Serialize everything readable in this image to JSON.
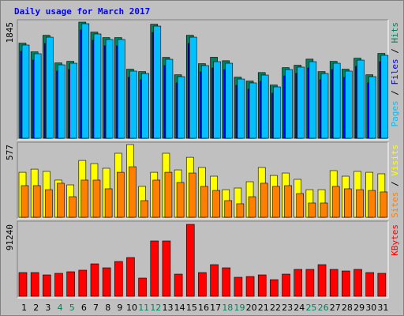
{
  "title": "Daily usage for March 2017",
  "legend_separator": " / ",
  "chart_data": [
    {
      "type": "bar",
      "ylim": [
        0,
        1845
      ],
      "yticks": [
        1845
      ],
      "series": [
        {
          "name": "Pages",
          "color": "#00c0ff",
          "values": [
            1481,
            1343,
            1606,
            1167,
            1192,
            1820,
            1657,
            1569,
            1569,
            1067,
            1029,
            1782,
            1255,
            979,
            1606,
            1155,
            1217,
            1192,
            941,
            879,
            1004,
            816,
            1092,
            1130,
            1217,
            1029,
            1192,
            1067,
            1242,
            979,
            1318
          ]
        },
        {
          "name": "Files",
          "color": "#0000ff",
          "values": [
            1381,
            1243,
            1506,
            1067,
            1092,
            1720,
            1557,
            1469,
            1469,
            967,
            929,
            1682,
            1155,
            879,
            1506,
            1055,
            1117,
            1092,
            841,
            779,
            904,
            716,
            992,
            1030,
            1117,
            929,
            1092,
            967,
            1142,
            879,
            1218
          ]
        },
        {
          "name": "Hits",
          "color": "#00805c",
          "values": [
            1511,
            1373,
            1636,
            1197,
            1222,
            1845,
            1687,
            1599,
            1599,
            1097,
            1059,
            1812,
            1285,
            1009,
            1636,
            1185,
            1287,
            1232,
            971,
            909,
            1044,
            846,
            1122,
            1160,
            1257,
            1059,
            1222,
            1097,
            1272,
            1009,
            1348
          ]
        }
      ]
    },
    {
      "type": "bar",
      "ylim": [
        0,
        577
      ],
      "yticks": [
        577
      ],
      "series": [
        {
          "name": "Sites",
          "color": "#ff8000",
          "values": [
            251,
            251,
            219,
            270,
            163,
            295,
            295,
            226,
            357,
            401,
            132,
            295,
            357,
            276,
            351,
            245,
            213,
            132,
            107,
            163,
            270,
            245,
            251,
            188,
            113,
            113,
            245,
            226,
            219,
            213,
            201
          ]
        },
        {
          "name": "Visits",
          "color": "#ffff00",
          "values": [
            357,
            382,
            364,
            295,
            257,
            451,
            426,
            389,
            508,
            577,
            245,
            357,
            508,
            376,
            476,
            395,
            326,
            219,
            232,
            282,
            395,
            332,
            351,
            301,
            219,
            219,
            370,
            326,
            364,
            357,
            345
          ]
        }
      ]
    },
    {
      "type": "bar",
      "ylim": [
        0,
        91240
      ],
      "yticks": [
        91240
      ],
      "categories": [
        "1",
        "2",
        "3",
        "4",
        "5",
        "6",
        "7",
        "8",
        "9",
        "10",
        "11",
        "12",
        "13",
        "14",
        "15",
        "16",
        "17",
        "18",
        "19",
        "20",
        "21",
        "22",
        "23",
        "24",
        "25",
        "26",
        "27",
        "28",
        "29",
        "30",
        "31"
      ],
      "category_colors": [
        "#000000",
        "#000000",
        "#000000",
        "#00805c",
        "#00805c",
        "#000000",
        "#000000",
        "#000000",
        "#000000",
        "#000000",
        "#00805c",
        "#00805c",
        "#000000",
        "#000000",
        "#000000",
        "#000000",
        "#000000",
        "#00805c",
        "#00805c",
        "#000000",
        "#000000",
        "#000000",
        "#000000",
        "#000000",
        "#00805c",
        "#00805c",
        "#000000",
        "#000000",
        "#000000",
        "#000000",
        "#000000"
      ],
      "series": [
        {
          "name": "KBytes",
          "color": "#ff0000",
          "values": [
            30090,
            30090,
            27080,
            29090,
            31100,
            33100,
            41120,
            36100,
            44130,
            49150,
            23070,
            70210,
            70210,
            28080,
            91240,
            30090,
            40120,
            36100,
            24070,
            25080,
            27080,
            21060,
            28080,
            34100,
            34100,
            40120,
            34100,
            32100,
            34100,
            30090,
            29090
          ]
        }
      ]
    }
  ]
}
